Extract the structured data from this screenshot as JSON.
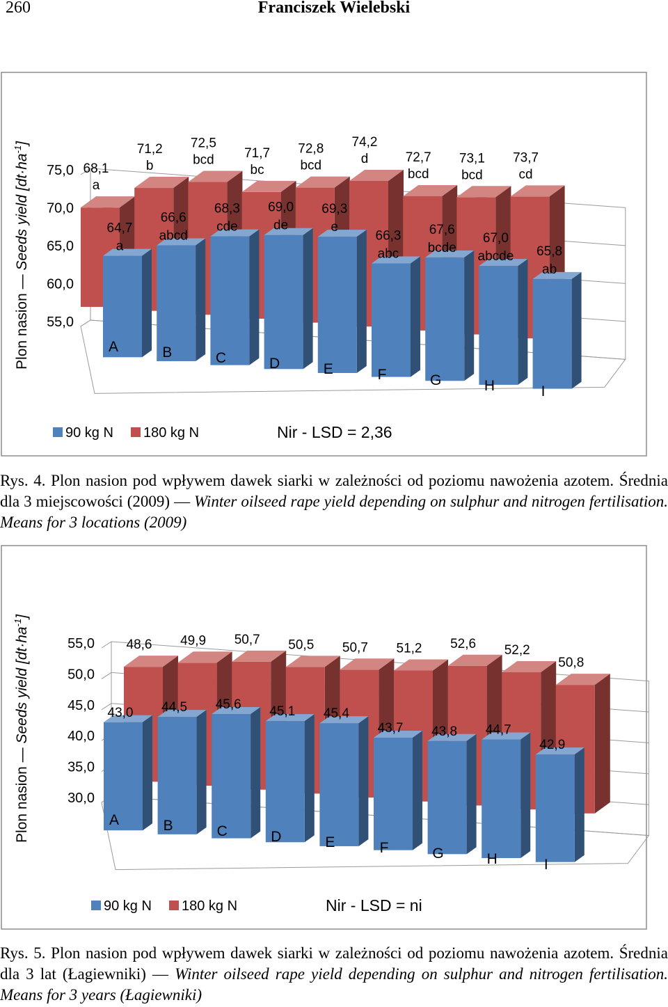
{
  "header": {
    "page_number": "260",
    "author": "Franciszek Wielebski"
  },
  "figures": [
    {
      "caption_pl": "Rys. 4. Plon nasion pod wpływem dawek siarki w zależności od poziomu nawożenia azotem. Średnia dla 3 miejscowości (2009)",
      "caption_en": "Winter oilseed rape yield depending on sulphur and nitrogen fertilisation. Means for 3 locations (2009)",
      "ylabel_pl": "Plon nasion",
      "ylabel_en": "Seeds yield [dt·ha",
      "ylabel_sup": "-1",
      "ylabel_close": "]",
      "lsd": "Nir - LSD = 2,36"
    },
    {
      "caption_pl": "Rys. 5. Plon nasion pod wpływem dawek siarki w zależności od poziomu nawożenia azotem. Średnia dla 3 lat (Łagiewniki)",
      "caption_en": "Winter oilseed rape yield depending on sulphur and nitrogen fertilisation. Means for 3 years (Łagiewniki)",
      "ylabel_pl": "Plon nasion",
      "ylabel_en": "Seeds yield [dt·ha",
      "ylabel_sup": "-1",
      "ylabel_close": "]",
      "lsd": "Nir - LSD = ni"
    }
  ],
  "chart_data": [
    {
      "type": "bar",
      "title": "",
      "categories": [
        "A",
        "B",
        "C",
        "D",
        "E",
        "F",
        "G",
        "H",
        "I"
      ],
      "yticks": [
        "55,0",
        "60,0",
        "65,0",
        "70,0",
        "75,0"
      ],
      "ylim": [
        55,
        75
      ],
      "legend_position": "bottom-left",
      "grid": true,
      "series": [
        {
          "name": "90 kg N",
          "color": "#4f81bd",
          "values": [
            64.7,
            66.6,
            68.3,
            69.0,
            69.3,
            66.3,
            67.6,
            67.0,
            65.8
          ],
          "labels": [
            "64,7",
            "66,6",
            "68,3",
            "69,0",
            "69,3",
            "66,3",
            "67,6",
            "67,0",
            "65,8"
          ],
          "letters": [
            "a",
            "abcd",
            "cde",
            "de",
            "e",
            "abc",
            "bcde",
            "abcde",
            "ab"
          ]
        },
        {
          "name": "180 kg N",
          "color": "#c0504d",
          "values": [
            68.1,
            71.2,
            72.5,
            71.7,
            72.8,
            74.2,
            72.7,
            73.1,
            73.7
          ],
          "labels": [
            "68,1",
            "71,2",
            "72,5",
            "71,7",
            "72,8",
            "74,2",
            "72,7",
            "73,1",
            "73,7"
          ],
          "letters": [
            "a",
            "b",
            "bcd",
            "bc",
            "bcd",
            "d",
            "bcd",
            "bcd",
            "cd"
          ]
        }
      ]
    },
    {
      "type": "bar",
      "title": "",
      "categories": [
        "A",
        "B",
        "C",
        "D",
        "E",
        "F",
        "G",
        "H",
        "I"
      ],
      "yticks": [
        "30,0",
        "35,0",
        "40,0",
        "45,0",
        "50,0",
        "55,0"
      ],
      "ylim": [
        30,
        55
      ],
      "legend_position": "bottom-left",
      "grid": true,
      "series": [
        {
          "name": "90 kg N",
          "color": "#4f81bd",
          "values": [
            43.0,
            44.5,
            45.6,
            45.1,
            45.4,
            43.7,
            43.8,
            44.7,
            42.9
          ],
          "labels": [
            "43,0",
            "44,5",
            "45,6",
            "45,1",
            "45,4",
            "43,7",
            "43,8",
            "44,7",
            "42,9"
          ],
          "letters": [
            "",
            "",
            "",
            "",
            "",
            "",
            "",
            "",
            ""
          ]
        },
        {
          "name": "180 kg N",
          "color": "#c0504d",
          "values": [
            48.6,
            49.9,
            50.7,
            50.5,
            50.7,
            51.2,
            52.6,
            52.2,
            50.8
          ],
          "labels": [
            "48,6",
            "49,9",
            "50,7",
            "50,5",
            "50,7",
            "51,2",
            "52,6",
            "52,2",
            "50,8"
          ],
          "letters": [
            "",
            "",
            "",
            "",
            "",
            "",
            "",
            "",
            ""
          ]
        }
      ]
    }
  ]
}
